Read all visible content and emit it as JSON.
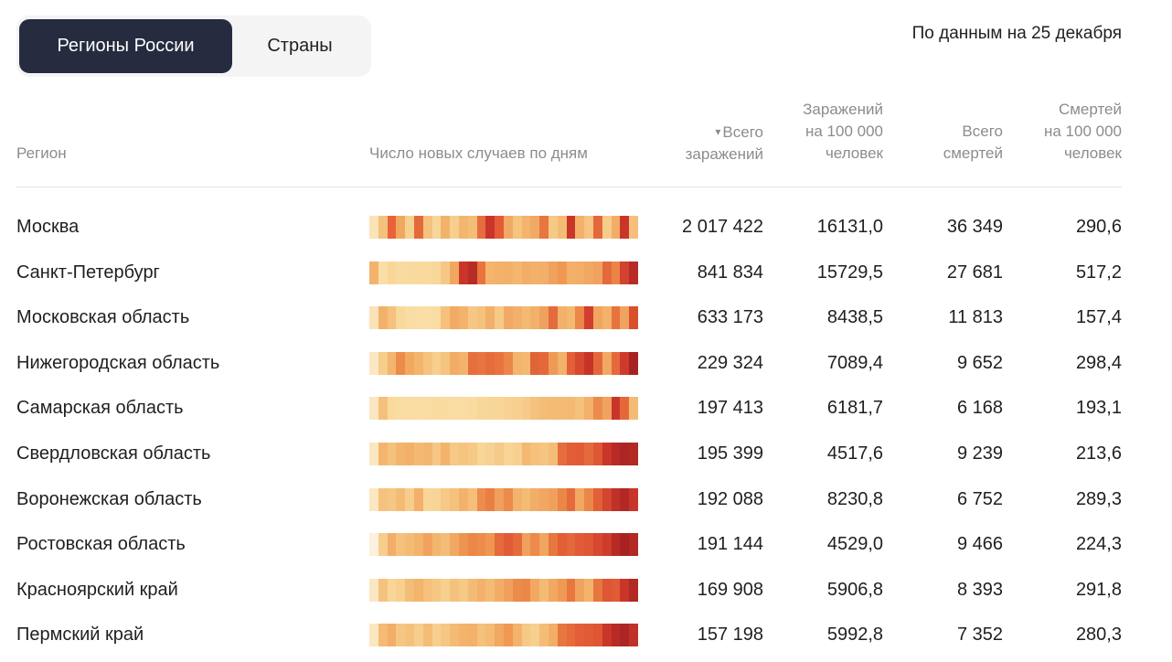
{
  "tabs": {
    "active": "Регионы России",
    "inactive": "Страны"
  },
  "date_note": "По данным на 25 декабря",
  "columns": {
    "region": "Регион",
    "chart": "Число новых случаев по дням",
    "total": [
      "Всего",
      "заражений"
    ],
    "per100": [
      "Заражений",
      "на 100 000",
      "человек"
    ],
    "deaths": [
      "Всего",
      "смертей"
    ],
    "deaths100": [
      "Смертей",
      "на 100 000",
      "человек"
    ]
  },
  "sort_indicator": "▾",
  "rows": [
    {
      "region": "Москва",
      "total": "2 017 422",
      "per100": "16131,0",
      "deaths": "36 349",
      "deaths100": "290,6",
      "heat": [
        "#fae3b7",
        "#f3c27c",
        "#e8623a",
        "#f0a85e",
        "#f6d08f",
        "#e36a3b",
        "#f4c27f",
        "#f7d69a",
        "#f3b26a",
        "#f6cf8f",
        "#f2b66e",
        "#f4bd77",
        "#e66d3e",
        "#c9352a",
        "#e35b37",
        "#f0a966",
        "#f5c47f",
        "#f3b46e",
        "#f1aa66",
        "#e8763f",
        "#f6c987",
        "#f3bb73",
        "#c83629",
        "#f3b16a",
        "#f6c483",
        "#e5683c",
        "#f7cc8b",
        "#f2ae67",
        "#c93629",
        "#f5c07b"
      ]
    },
    {
      "region": "Санкт-Петербург",
      "total": "841 834",
      "per100": "15729,5",
      "deaths": "27 681",
      "deaths100": "517,2",
      "heat": [
        "#f3b36d",
        "#f9dfa7",
        "#f8d797",
        "#f9dba0",
        "#f9db9f",
        "#f9da9e",
        "#f9d99d",
        "#f8d79a",
        "#f6c886",
        "#f1a75f",
        "#c93629",
        "#b82c26",
        "#e9733f",
        "#f4b46c",
        "#f3b16a",
        "#f3b06a",
        "#f4b66f",
        "#f2ad67",
        "#f3b06a",
        "#f2af69",
        "#f0a15d",
        "#ee9852",
        "#f3b06a",
        "#f2ad67",
        "#f1a863",
        "#f0a35f",
        "#e46a3d",
        "#eb8447",
        "#d24230",
        "#b72a25"
      ]
    },
    {
      "region": "Московская область",
      "total": "633 173",
      "per100": "8438,5",
      "deaths": "11 813",
      "deaths100": "157,4",
      "heat": [
        "#fae3b7",
        "#f2b169",
        "#f5c17c",
        "#f8d89b",
        "#f8dda4",
        "#f9ddA4",
        "#f9dea5",
        "#f9dca2",
        "#f5c17c",
        "#f1ab65",
        "#f3b36c",
        "#f6c784",
        "#f5c27e",
        "#f2b06a",
        "#f6c985",
        "#f1a965",
        "#f2b06b",
        "#f4ba74",
        "#f2b16a",
        "#f0a15e",
        "#e46b3d",
        "#f2b06a",
        "#f4b971",
        "#eb8748",
        "#d23e2e",
        "#f1a560",
        "#f3b16a",
        "#e8733f",
        "#f0a35f",
        "#d9502f"
      ]
    },
    {
      "region": "Нижегородская область",
      "total": "229 324",
      "per100": "7089,4",
      "deaths": "9 652",
      "deaths100": "298,4",
      "heat": [
        "#fbe7c2",
        "#f6cd8b",
        "#f3b56d",
        "#ec8b4a",
        "#f1a962",
        "#f3b46c",
        "#f6c37f",
        "#f7ce8e",
        "#f5c47f",
        "#f2ac66",
        "#f3b36c",
        "#e66f3e",
        "#e8753f",
        "#e66c3b",
        "#e8733f",
        "#eb8648",
        "#f3b56d",
        "#f4b870",
        "#e06435",
        "#e5683b",
        "#ee9a55",
        "#f2b06a",
        "#e25f37",
        "#d6482f",
        "#c83328",
        "#e3673a",
        "#f1a863",
        "#e46a3c",
        "#ce3a2c",
        "#a82222"
      ]
    },
    {
      "region": "Самарская область",
      "total": "197 413",
      "per100": "6181,7",
      "deaths": "6 168",
      "deaths100": "193,1",
      "heat": [
        "#fbe7c2",
        "#f4c07b",
        "#f9d99c",
        "#f9dca1",
        "#f9dca2",
        "#f9dda3",
        "#f9dca2",
        "#f9dba0",
        "#f9dca1",
        "#f9dca1",
        "#f9dca2",
        "#f9dba0",
        "#f8d89a",
        "#f8d697",
        "#f8d697",
        "#f7d294",
        "#f7d090",
        "#f6cb89",
        "#f5c27e",
        "#f4bd77",
        "#f4bb75",
        "#f4bb75",
        "#f4ba74",
        "#f5c17c",
        "#f3b16a",
        "#ec8c4c",
        "#f0a35e",
        "#c93629",
        "#e5683b",
        "#f4bb75"
      ]
    },
    {
      "region": "Свердловская область",
      "total": "195 399",
      "per100": "4517,6",
      "deaths": "9 239",
      "deaths100": "213,6",
      "heat": [
        "#fbe7c2",
        "#f3b66e",
        "#f5c27e",
        "#f3b46c",
        "#f2b069",
        "#f4ba73",
        "#f3b66e",
        "#f6c784",
        "#f3b36c",
        "#f6c987",
        "#f5c57f",
        "#f6c986",
        "#f8d697",
        "#f7d294",
        "#f6ca88",
        "#f8d595",
        "#f7d090",
        "#f4b870",
        "#f5c17c",
        "#f6c581",
        "#f4bd77",
        "#e66d3d",
        "#e25e37",
        "#e15c36",
        "#e46a3c",
        "#de5634",
        "#c93629",
        "#b72a25",
        "#ad2623",
        "#b12824"
      ]
    },
    {
      "region": "Воронежская область",
      "total": "192 088",
      "per100": "8230,8",
      "deaths": "6 752",
      "deaths100": "289,3",
      "heat": [
        "#fbe7c2",
        "#f5c27e",
        "#f6c784",
        "#f4bb75",
        "#f7cd8d",
        "#f2b06a",
        "#f8d697",
        "#f8d596",
        "#f6c986",
        "#f5c27e",
        "#f3b26c",
        "#f5bf7a",
        "#ec8d4c",
        "#ea7f44",
        "#f0a05c",
        "#ec8b4a",
        "#f3b36c",
        "#f4bb75",
        "#f2ad67",
        "#f1a761",
        "#f0a05c",
        "#eb8647",
        "#e56b3c",
        "#f1a863",
        "#eb8748",
        "#e35f37",
        "#d4452f",
        "#c03129",
        "#b12824",
        "#c83629"
      ]
    },
    {
      "region": "Ростовская область",
      "total": "191 144",
      "per100": "4529,0",
      "deaths": "9 466",
      "deaths100": "224,3",
      "heat": [
        "#fdf1de",
        "#f7cd8d",
        "#f2ae68",
        "#f5c27e",
        "#f4bb75",
        "#f3b36c",
        "#f0a35f",
        "#f3b56d",
        "#f4bd77",
        "#f1a863",
        "#ee9451",
        "#eb8748",
        "#ec8c4b",
        "#ee9652",
        "#e56b3c",
        "#e15c36",
        "#e46a3c",
        "#f0a05c",
        "#ec8b4a",
        "#f0a561",
        "#e8763f",
        "#e25f37",
        "#e5683b",
        "#e15c36",
        "#de5634",
        "#d6482f",
        "#ce3c2c",
        "#b72a25",
        "#a82222",
        "#b12824"
      ]
    },
    {
      "region": "Красноярский край",
      "total": "169 908",
      "per100": "5906,8",
      "deaths": "8 393",
      "deaths100": "291,8",
      "heat": [
        "#fbe7c2",
        "#f5c27e",
        "#f8d697",
        "#f7d090",
        "#f4bd77",
        "#f3b46c",
        "#f5c17c",
        "#f6c784",
        "#f7cf8f",
        "#f5c27e",
        "#f6c986",
        "#f4bb75",
        "#f3b16b",
        "#f4bb75",
        "#f2ae68",
        "#f0a05c",
        "#ec8c4b",
        "#eb8748",
        "#f1a863",
        "#f4bb75",
        "#f1a863",
        "#ef9955",
        "#e8763f",
        "#f0a35f",
        "#f3b36c",
        "#e8763f",
        "#de5634",
        "#e15c36",
        "#c93629",
        "#b12824"
      ]
    },
    {
      "region": "Пермский край",
      "total": "157 198",
      "per100": "5992,8",
      "deaths": "7 352",
      "deaths100": "280,3",
      "heat": [
        "#fbe7c2",
        "#f4bb75",
        "#f2ae68",
        "#f6c784",
        "#f5c27e",
        "#f7cd8d",
        "#f4bd77",
        "#f7d090",
        "#f6c784",
        "#f4bb75",
        "#f3b36c",
        "#f3b16b",
        "#f5c17c",
        "#f4bb75",
        "#f1a863",
        "#ef9955",
        "#f3b36c",
        "#f6c986",
        "#f7cf8f",
        "#f4bd77",
        "#f2ae68",
        "#e8763f",
        "#e56b3c",
        "#e25f37",
        "#e15c36",
        "#de5634",
        "#c93629",
        "#b72a25",
        "#ad2623",
        "#c03129"
      ]
    }
  ]
}
